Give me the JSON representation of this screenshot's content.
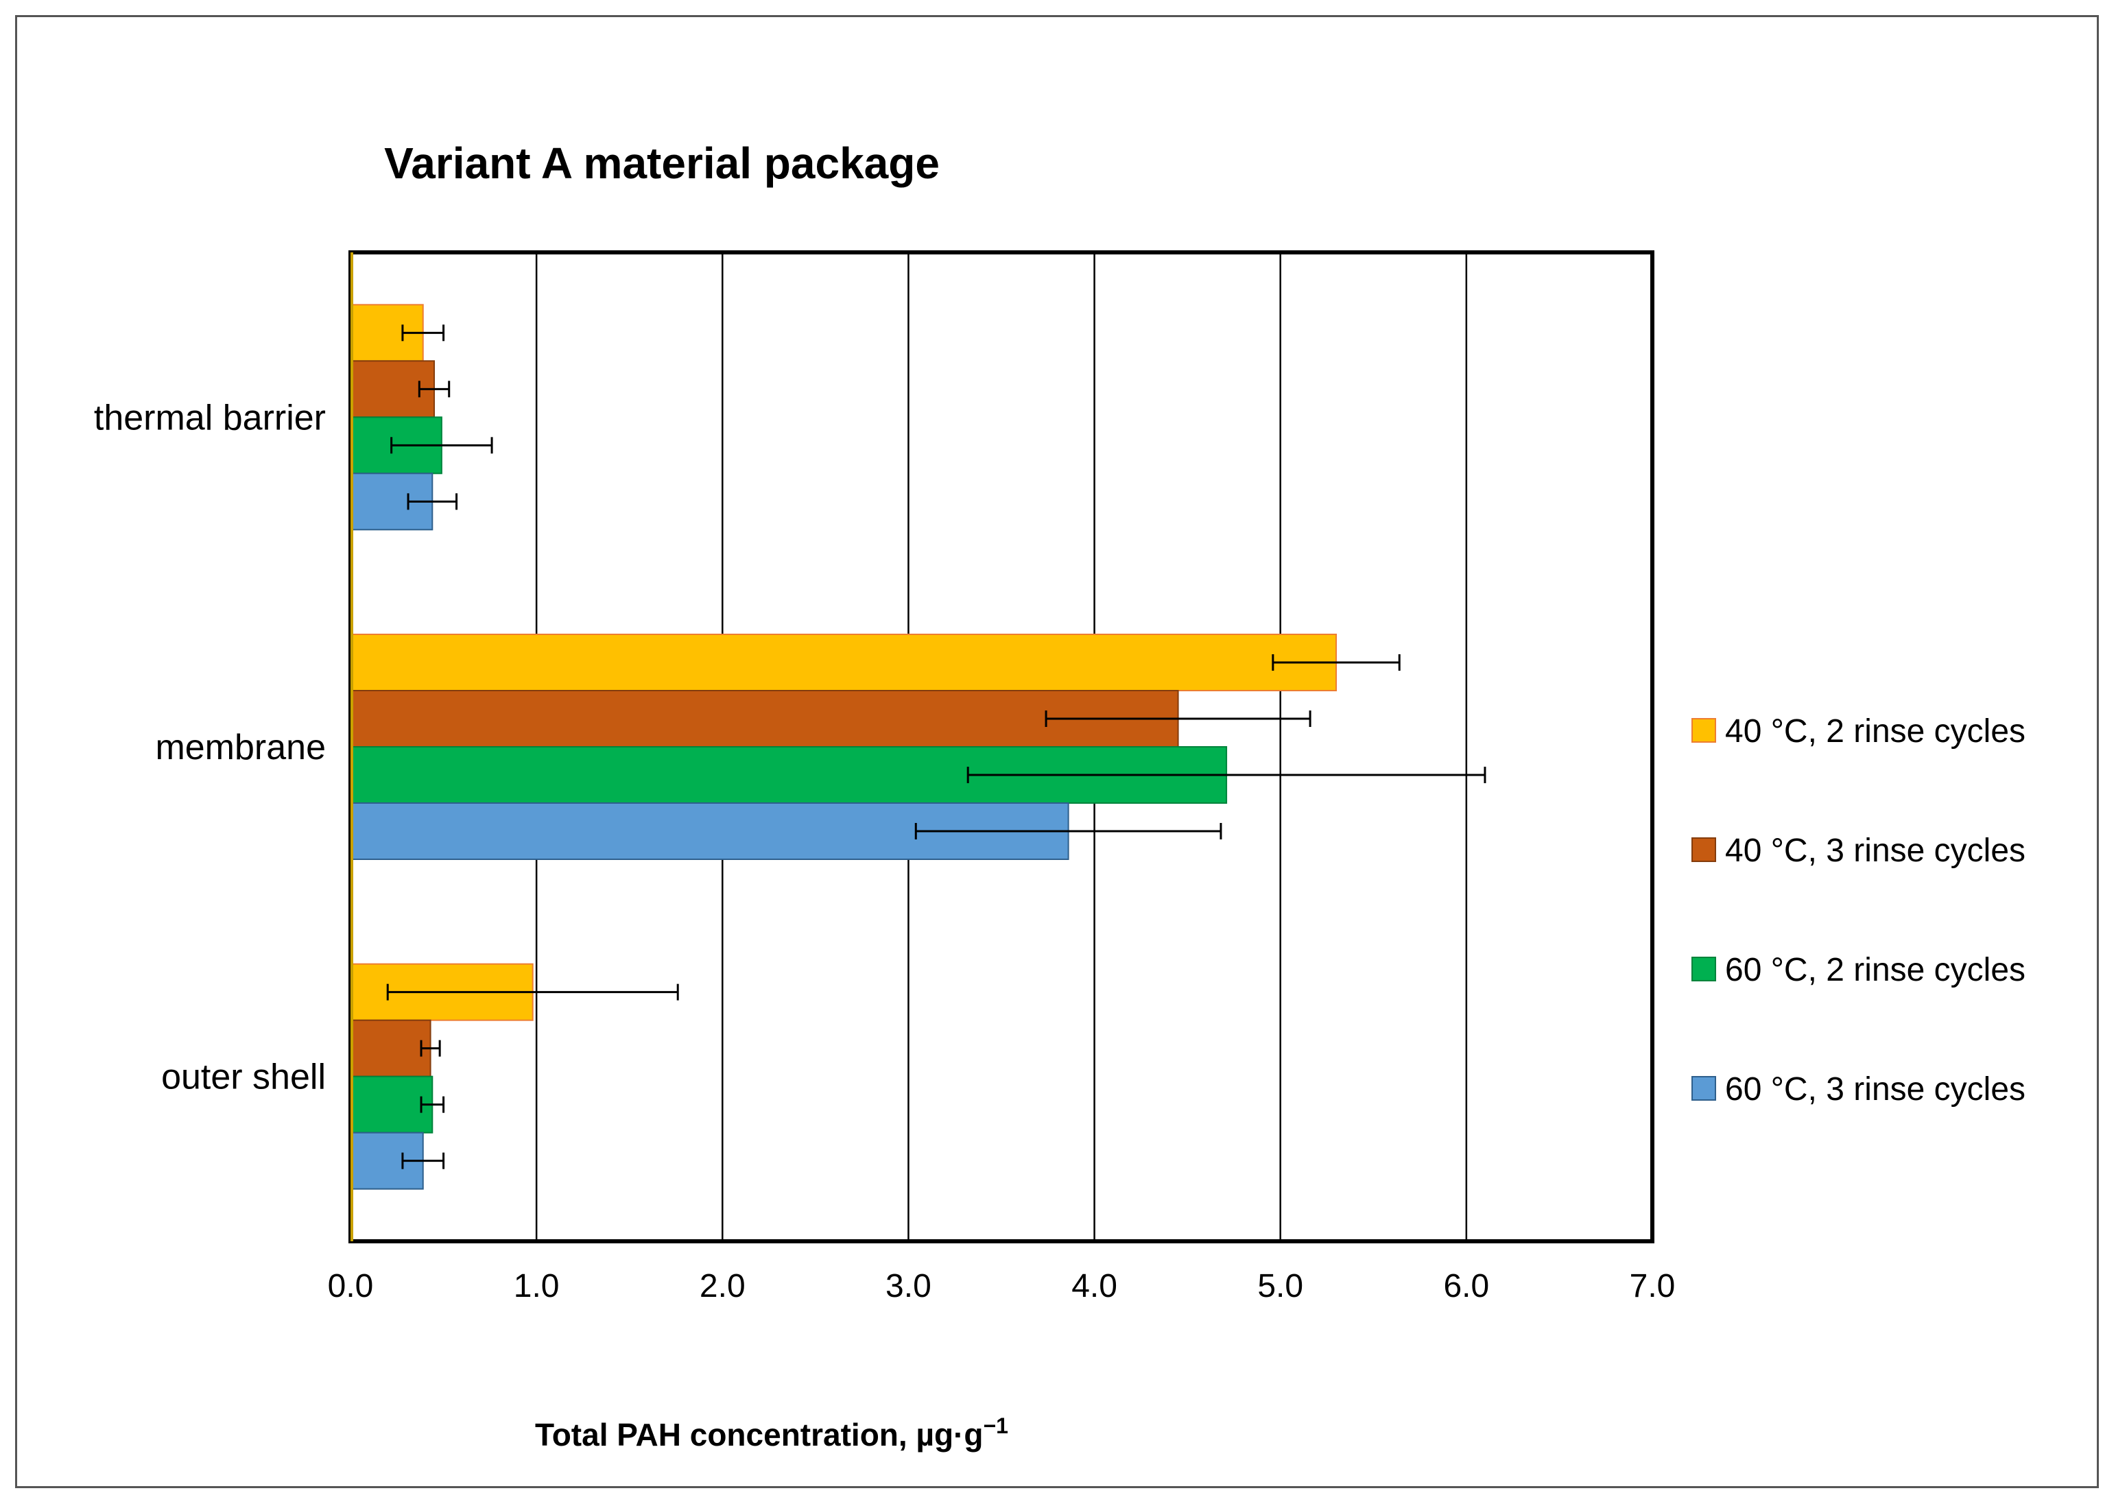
{
  "chart_data": {
    "type": "bar",
    "orientation": "horizontal",
    "title": "Variant A material package",
    "xlabel": "Total PAH concentration, µg·g",
    "xlabel_superscript": "−1",
    "ylabel": "",
    "xlim": [
      0.0,
      7.0
    ],
    "xticks": [
      0.0,
      1.0,
      2.0,
      3.0,
      4.0,
      5.0,
      6.0,
      7.0
    ],
    "tick_format_decimals": 1,
    "grid": "vertical major",
    "legend_position": "right",
    "categories": [
      "thermal barrier",
      "membrane",
      "outer shell"
    ],
    "series": [
      {
        "name": "40 °C, 2 rinse cycles",
        "color": "#FFC000",
        "edge": "#ED7D31",
        "values": [
          0.39,
          5.3,
          0.98
        ],
        "errors": [
          0.11,
          0.34,
          0.78
        ]
      },
      {
        "name": "40 °C, 3 rinse cycles",
        "color": "#C55A11",
        "edge": "#843C0C",
        "values": [
          0.45,
          4.45,
          0.43
        ],
        "errors": [
          0.08,
          0.71,
          0.05
        ]
      },
      {
        "name": "60 °C, 2 rinse  cycles",
        "color": "#00B050",
        "edge": "#00833B",
        "values": [
          0.49,
          4.71,
          0.44
        ],
        "errors": [
          0.27,
          1.39,
          0.06
        ]
      },
      {
        "name": "60 °C, 3 rinse cycles",
        "color": "#5B9BD5",
        "edge": "#2E5F8C",
        "values": [
          0.44,
          3.86,
          0.39
        ],
        "errors": [
          0.13,
          0.82,
          0.11
        ]
      }
    ]
  }
}
